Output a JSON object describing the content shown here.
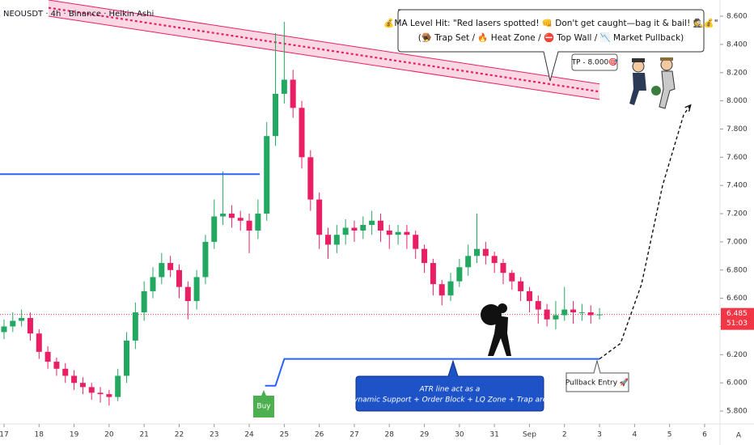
{
  "chart_data": {
    "type": "candlestick",
    "title": "NEOUSDT · 4h · Binance · Heikin Ashi",
    "up_color": "#22a860",
    "down_color": "#e91e63",
    "grid": false,
    "x": [
      17,
      17.25,
      17.5,
      17.75,
      18,
      18.25,
      18.5,
      18.75,
      19,
      19.25,
      19.5,
      19.75,
      20,
      20.25,
      20.5,
      20.75,
      21,
      21.25,
      21.5,
      21.75,
      22,
      22.25,
      22.5,
      22.75,
      23,
      23.25,
      23.5,
      23.75,
      24,
      24.25,
      24.5,
      24.75,
      25,
      25.25,
      25.5,
      25.75,
      26,
      26.25,
      26.5,
      26.75,
      27,
      27.25,
      27.5,
      27.75,
      28,
      28.25,
      28.5,
      28.75,
      29,
      29.25,
      29.5,
      29.75,
      30,
      30.25,
      30.5,
      30.75,
      31,
      31.25,
      31.5,
      31.75,
      32,
      32.25,
      32.5,
      32.75,
      33,
      33.25,
      33.5,
      33.75,
      34
    ],
    "open": [
      6.36,
      6.4,
      6.44,
      6.46,
      6.35,
      6.22,
      6.15,
      6.1,
      6.05,
      6.0,
      5.97,
      5.93,
      5.92,
      5.9,
      6.05,
      6.3,
      6.5,
      6.65,
      6.75,
      6.85,
      6.8,
      6.68,
      6.58,
      6.75,
      7.0,
      7.18,
      7.2,
      7.17,
      7.15,
      7.08,
      7.2,
      7.75,
      8.05,
      8.15,
      7.95,
      7.6,
      7.3,
      7.05,
      6.98,
      7.05,
      7.1,
      7.08,
      7.12,
      7.15,
      7.08,
      7.05,
      7.07,
      7.05,
      6.95,
      6.85,
      6.7,
      6.62,
      6.72,
      6.82,
      6.9,
      6.95,
      6.9,
      6.85,
      6.78,
      6.72,
      6.65,
      6.58,
      6.52,
      6.45,
      6.48,
      6.52,
      6.5,
      6.5,
      6.48
    ],
    "high": [
      6.45,
      6.5,
      6.52,
      6.5,
      6.38,
      6.26,
      6.18,
      6.14,
      6.09,
      6.04,
      6.0,
      5.97,
      5.95,
      6.1,
      6.36,
      6.57,
      6.72,
      6.82,
      6.92,
      6.9,
      6.84,
      6.72,
      6.8,
      7.05,
      7.3,
      7.5,
      7.26,
      7.22,
      7.2,
      7.3,
      7.85,
      8.48,
      8.56,
      8.22,
      8.0,
      7.65,
      7.35,
      7.1,
      7.12,
      7.16,
      7.15,
      7.18,
      7.22,
      7.2,
      7.12,
      7.12,
      7.12,
      7.08,
      6.98,
      6.88,
      6.73,
      6.78,
      6.88,
      6.98,
      7.2,
      7.0,
      6.93,
      6.88,
      6.8,
      6.75,
      6.68,
      6.62,
      6.56,
      6.58,
      6.68,
      6.58,
      6.56,
      6.55,
      6.53
    ],
    "low": [
      6.31,
      6.36,
      6.4,
      6.3,
      6.17,
      6.1,
      6.05,
      6.0,
      5.95,
      5.92,
      5.88,
      5.86,
      5.84,
      5.87,
      6.0,
      6.24,
      6.44,
      6.6,
      6.7,
      6.75,
      6.6,
      6.45,
      6.52,
      6.7,
      6.95,
      7.12,
      7.1,
      7.08,
      6.92,
      7.02,
      7.15,
      7.68,
      7.98,
      7.88,
      7.52,
      7.22,
      6.95,
      6.88,
      6.92,
      6.98,
      7.0,
      7.02,
      7.05,
      7.0,
      6.95,
      6.98,
      6.95,
      6.88,
      6.78,
      6.62,
      6.55,
      6.58,
      6.68,
      6.76,
      6.85,
      6.84,
      6.78,
      6.7,
      6.66,
      6.58,
      6.5,
      6.42,
      6.4,
      6.38,
      6.44,
      6.42,
      6.44,
      6.42,
      6.45
    ],
    "close": [
      6.4,
      6.44,
      6.46,
      6.35,
      6.22,
      6.15,
      6.1,
      6.05,
      6.0,
      5.97,
      5.93,
      5.92,
      5.9,
      6.05,
      6.3,
      6.5,
      6.65,
      6.75,
      6.85,
      6.8,
      6.68,
      6.58,
      6.75,
      7.0,
      7.18,
      7.2,
      7.17,
      7.15,
      7.08,
      7.2,
      7.75,
      8.05,
      8.15,
      7.95,
      7.6,
      7.3,
      7.05,
      6.98,
      7.05,
      7.1,
      7.08,
      7.12,
      7.15,
      7.08,
      7.05,
      7.07,
      7.05,
      6.95,
      6.85,
      6.7,
      6.62,
      6.72,
      6.82,
      6.9,
      6.95,
      6.9,
      6.85,
      6.78,
      6.72,
      6.65,
      6.58,
      6.52,
      6.45,
      6.48,
      6.52,
      6.5,
      6.5,
      6.48,
      6.485
    ],
    "xlim": [
      16.885,
      37.44
    ],
    "ylim": [
      5.72,
      8.715
    ],
    "xticks": [
      17,
      18,
      19,
      20,
      21,
      22,
      23,
      24,
      25,
      26,
      27,
      28,
      29,
      30,
      31,
      {
        "value": 32,
        "label": "Sep"
      },
      {
        "value": 33,
        "label": "2"
      },
      {
        "value": 34,
        "label": "3"
      },
      {
        "value": 35,
        "label": "4"
      },
      {
        "value": 36,
        "label": "5"
      },
      {
        "value": 37,
        "label": "6"
      }
    ],
    "yticks": [
      {
        "value": 5.8,
        "label": "5.800"
      },
      {
        "value": 6,
        "label": "6.000"
      },
      {
        "value": 6.2,
        "label": "6.200"
      },
      {
        "value": 6.4,
        "label": "6.400"
      },
      {
        "value": 6.6,
        "label": "6.600"
      },
      {
        "value": 6.8,
        "label": "6.800"
      },
      {
        "value": 7,
        "label": "7.000"
      },
      {
        "value": 7.2,
        "label": "7.200"
      },
      {
        "value": 7.4,
        "label": "7.400"
      },
      {
        "value": 7.6,
        "label": "7.600"
      },
      {
        "value": 7.8,
        "label": "7.800"
      },
      {
        "value": 8,
        "label": "8.000"
      },
      {
        "value": 8.2,
        "label": "8.200"
      },
      {
        "value": 8.4,
        "label": "8.400"
      },
      {
        "value": 8.6,
        "label": "8.600"
      }
    ],
    "last_price": {
      "value": 6.485,
      "label": "6.485",
      "countdown": "51:03",
      "color": "#f23645"
    },
    "resistance": {
      "color": "#2962ff",
      "x": [
        16.885,
        24.3
      ],
      "y": [
        7.48,
        7.48
      ]
    },
    "atr_line": {
      "color": "#2962ff",
      "x": [
        24.45,
        24.75,
        25.0,
        34.0
      ],
      "y": [
        5.98,
        5.98,
        6.17,
        6.17
      ]
    },
    "channel": {
      "color": "#e91e63",
      "x": [
        18.27,
        34.0
      ],
      "upper": [
        8.715,
        8.12
      ],
      "middle": [
        8.66,
        8.065
      ],
      "lower": [
        8.6,
        8.01
      ]
    },
    "projection": {
      "color": "#111111",
      "x": [
        34.0,
        34.6,
        35.2,
        35.8,
        36.4,
        36.6
      ],
      "y": [
        6.17,
        6.28,
        6.7,
        7.4,
        7.9,
        7.97
      ]
    },
    "annotations": {
      "bubble": [
        "💰MA Level Hit: \"Red lasers spotted! 👊 Don't get caught—bag it & bail! 🕵️💰\"",
        "(🪤 Trap Set / 🔥 Heat Zone / ⛔ Top Wall / 📉 Market Pullback)"
      ],
      "tp": "TP - 8.000🎯",
      "buy": "Buy",
      "pullback": "Pullback Entry 🚀",
      "atr": [
        "ATR line act as a",
        "Dynamic Support + Order Block + LQ Zone + Trap area"
      ],
      "corner": "A"
    }
  }
}
